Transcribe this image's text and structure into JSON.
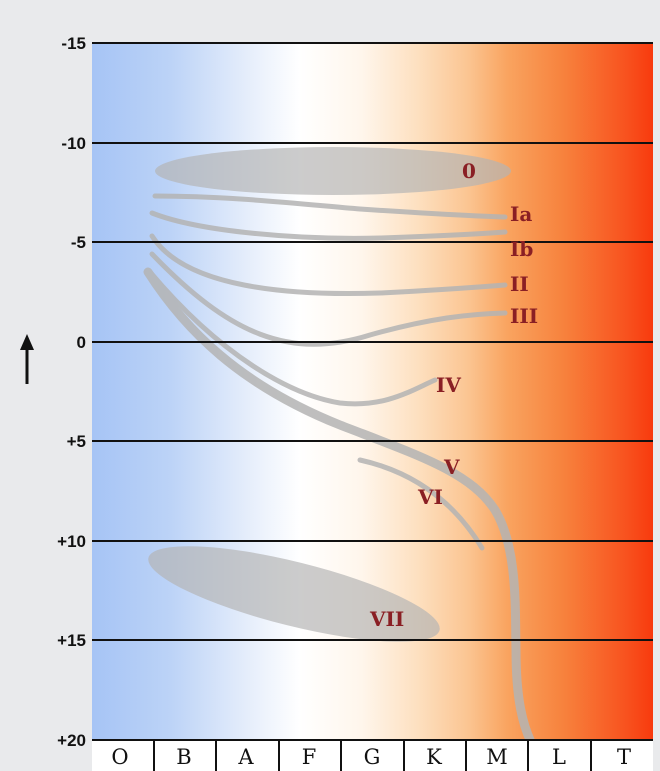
{
  "y_ticks": [
    "-15",
    "-10",
    "-5",
    "0",
    "+5",
    "+10",
    "+15",
    "+20"
  ],
  "spectral_classes": [
    "O",
    "B",
    "A",
    "F",
    "G",
    "K",
    "M",
    "L",
    "T"
  ],
  "luminosity_classes": [
    "0",
    "Ia",
    "Ib",
    "II",
    "III",
    "IV",
    "V",
    "VI",
    "VII"
  ],
  "arrow_direction": "up",
  "colors": {
    "blue": "#a6c4f5",
    "white": "#ffffff",
    "peach": "#fde0c0",
    "orange": "#f9a460",
    "red": "#f83a0e",
    "label": "#8a1f24",
    "band": "#b8b8b8"
  }
}
